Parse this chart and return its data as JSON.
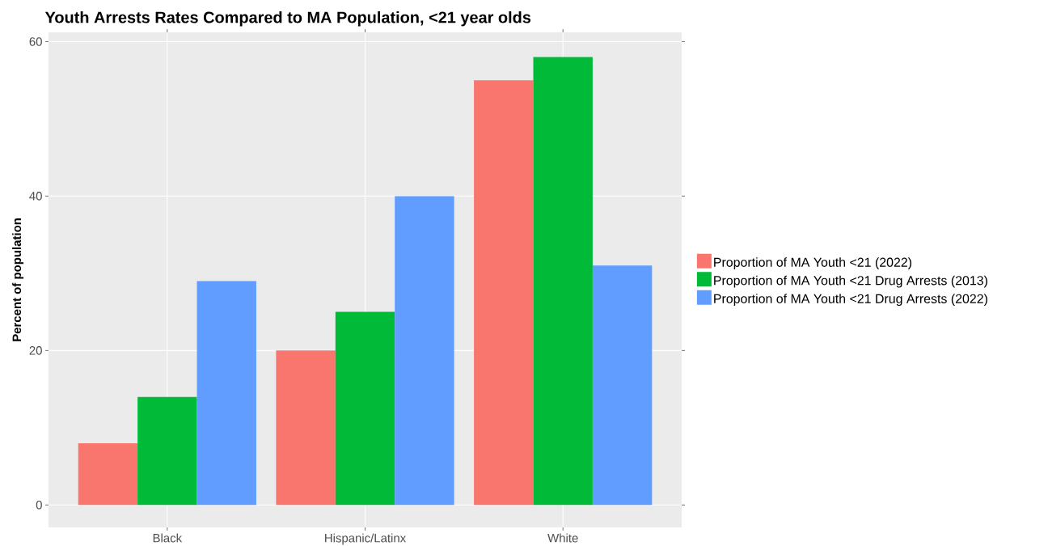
{
  "chart_data": {
    "type": "bar",
    "title": "Youth Arrests Rates Compared to MA Population, <21 year olds",
    "ylabel": "Percent of population",
    "categories": [
      "Black",
      "Hispanic/Latinx",
      "White"
    ],
    "series": [
      {
        "name": "Proportion of MA Youth <21 (2022)",
        "color": "#f8766d",
        "values": [
          8,
          20,
          55
        ]
      },
      {
        "name": "Proportion of MA Youth <21 Drug Arrests (2013)",
        "color": "#00ba38",
        "values": [
          14,
          25,
          58
        ]
      },
      {
        "name": "Proportion of MA Youth <21 Drug Arrests (2022)",
        "color": "#619cff",
        "values": [
          29,
          40,
          31
        ]
      }
    ],
    "ylim": [
      -2.9,
      61.2
    ],
    "yticks": [
      0,
      20,
      40,
      60
    ],
    "grid": true,
    "legend": "right"
  }
}
